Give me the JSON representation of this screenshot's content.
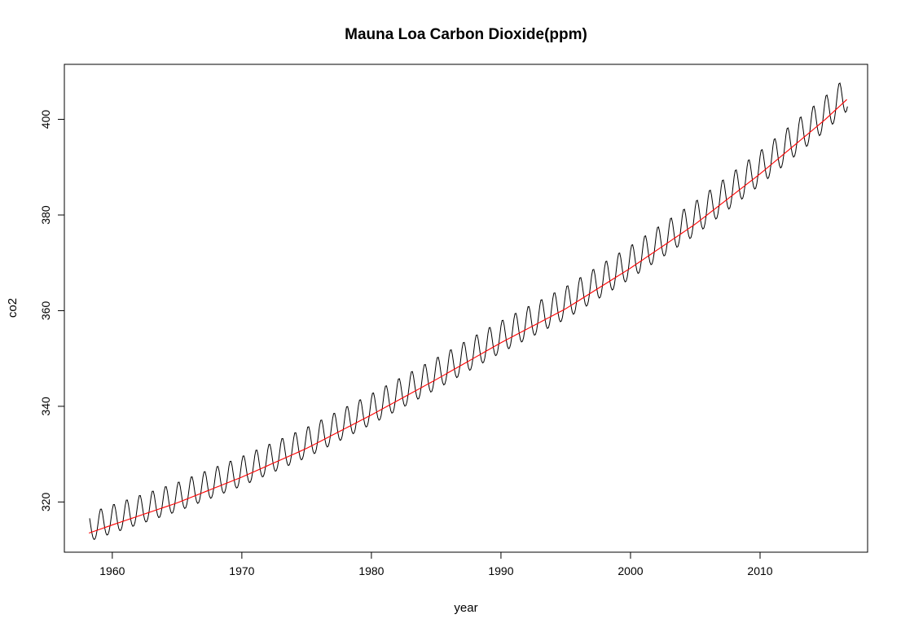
{
  "chart_data": {
    "type": "line",
    "title": "Mauna Loa Carbon Dioxide(ppm)",
    "xlabel": "year",
    "ylabel": "co2",
    "xlim": [
      1956.3,
      2018.3
    ],
    "ylim": [
      309.5,
      411.5
    ],
    "x_ticks": [
      1960,
      1970,
      1980,
      1990,
      2000,
      2010
    ],
    "y_ticks": [
      320,
      340,
      360,
      380,
      400
    ],
    "grid": false,
    "legend": "none",
    "series": [
      {
        "role": "observed monthly values",
        "color": "#000000",
        "start": 1958.25,
        "step": 0.08333,
        "note": "monthly values from 1958.25 to 2016.75",
        "sampled_points": {
          "x": [
            1958.3,
            1959.3,
            1960.3,
            1965.3,
            1970.3,
            1975.3,
            1980.3,
            1985.3,
            1990.3,
            1995.3,
            2000.3,
            2005.3,
            2010.3,
            2015.3,
            2016.4,
            2016.75
          ],
          "y": [
            317.5,
            318.3,
            320.0,
            322.2,
            327.0,
            333.0,
            340.5,
            348.0,
            357.5,
            362.3,
            371.8,
            381.0,
            392.5,
            403.0,
            407.5,
            402.0
          ]
        }
      },
      {
        "role": "smoothed trend",
        "color": "#ff0000",
        "x": [
          1958.2,
          1960,
          1965,
          1970,
          1975,
          1980,
          1985,
          1990,
          1995,
          2000,
          2005,
          2010,
          2015,
          2016.8
        ],
        "y": [
          313.5,
          315.2,
          319.8,
          325.2,
          331.2,
          338.2,
          345.6,
          353.3,
          360.4,
          368.9,
          378.1,
          388.6,
          399.9,
          404.4
        ]
      }
    ]
  }
}
